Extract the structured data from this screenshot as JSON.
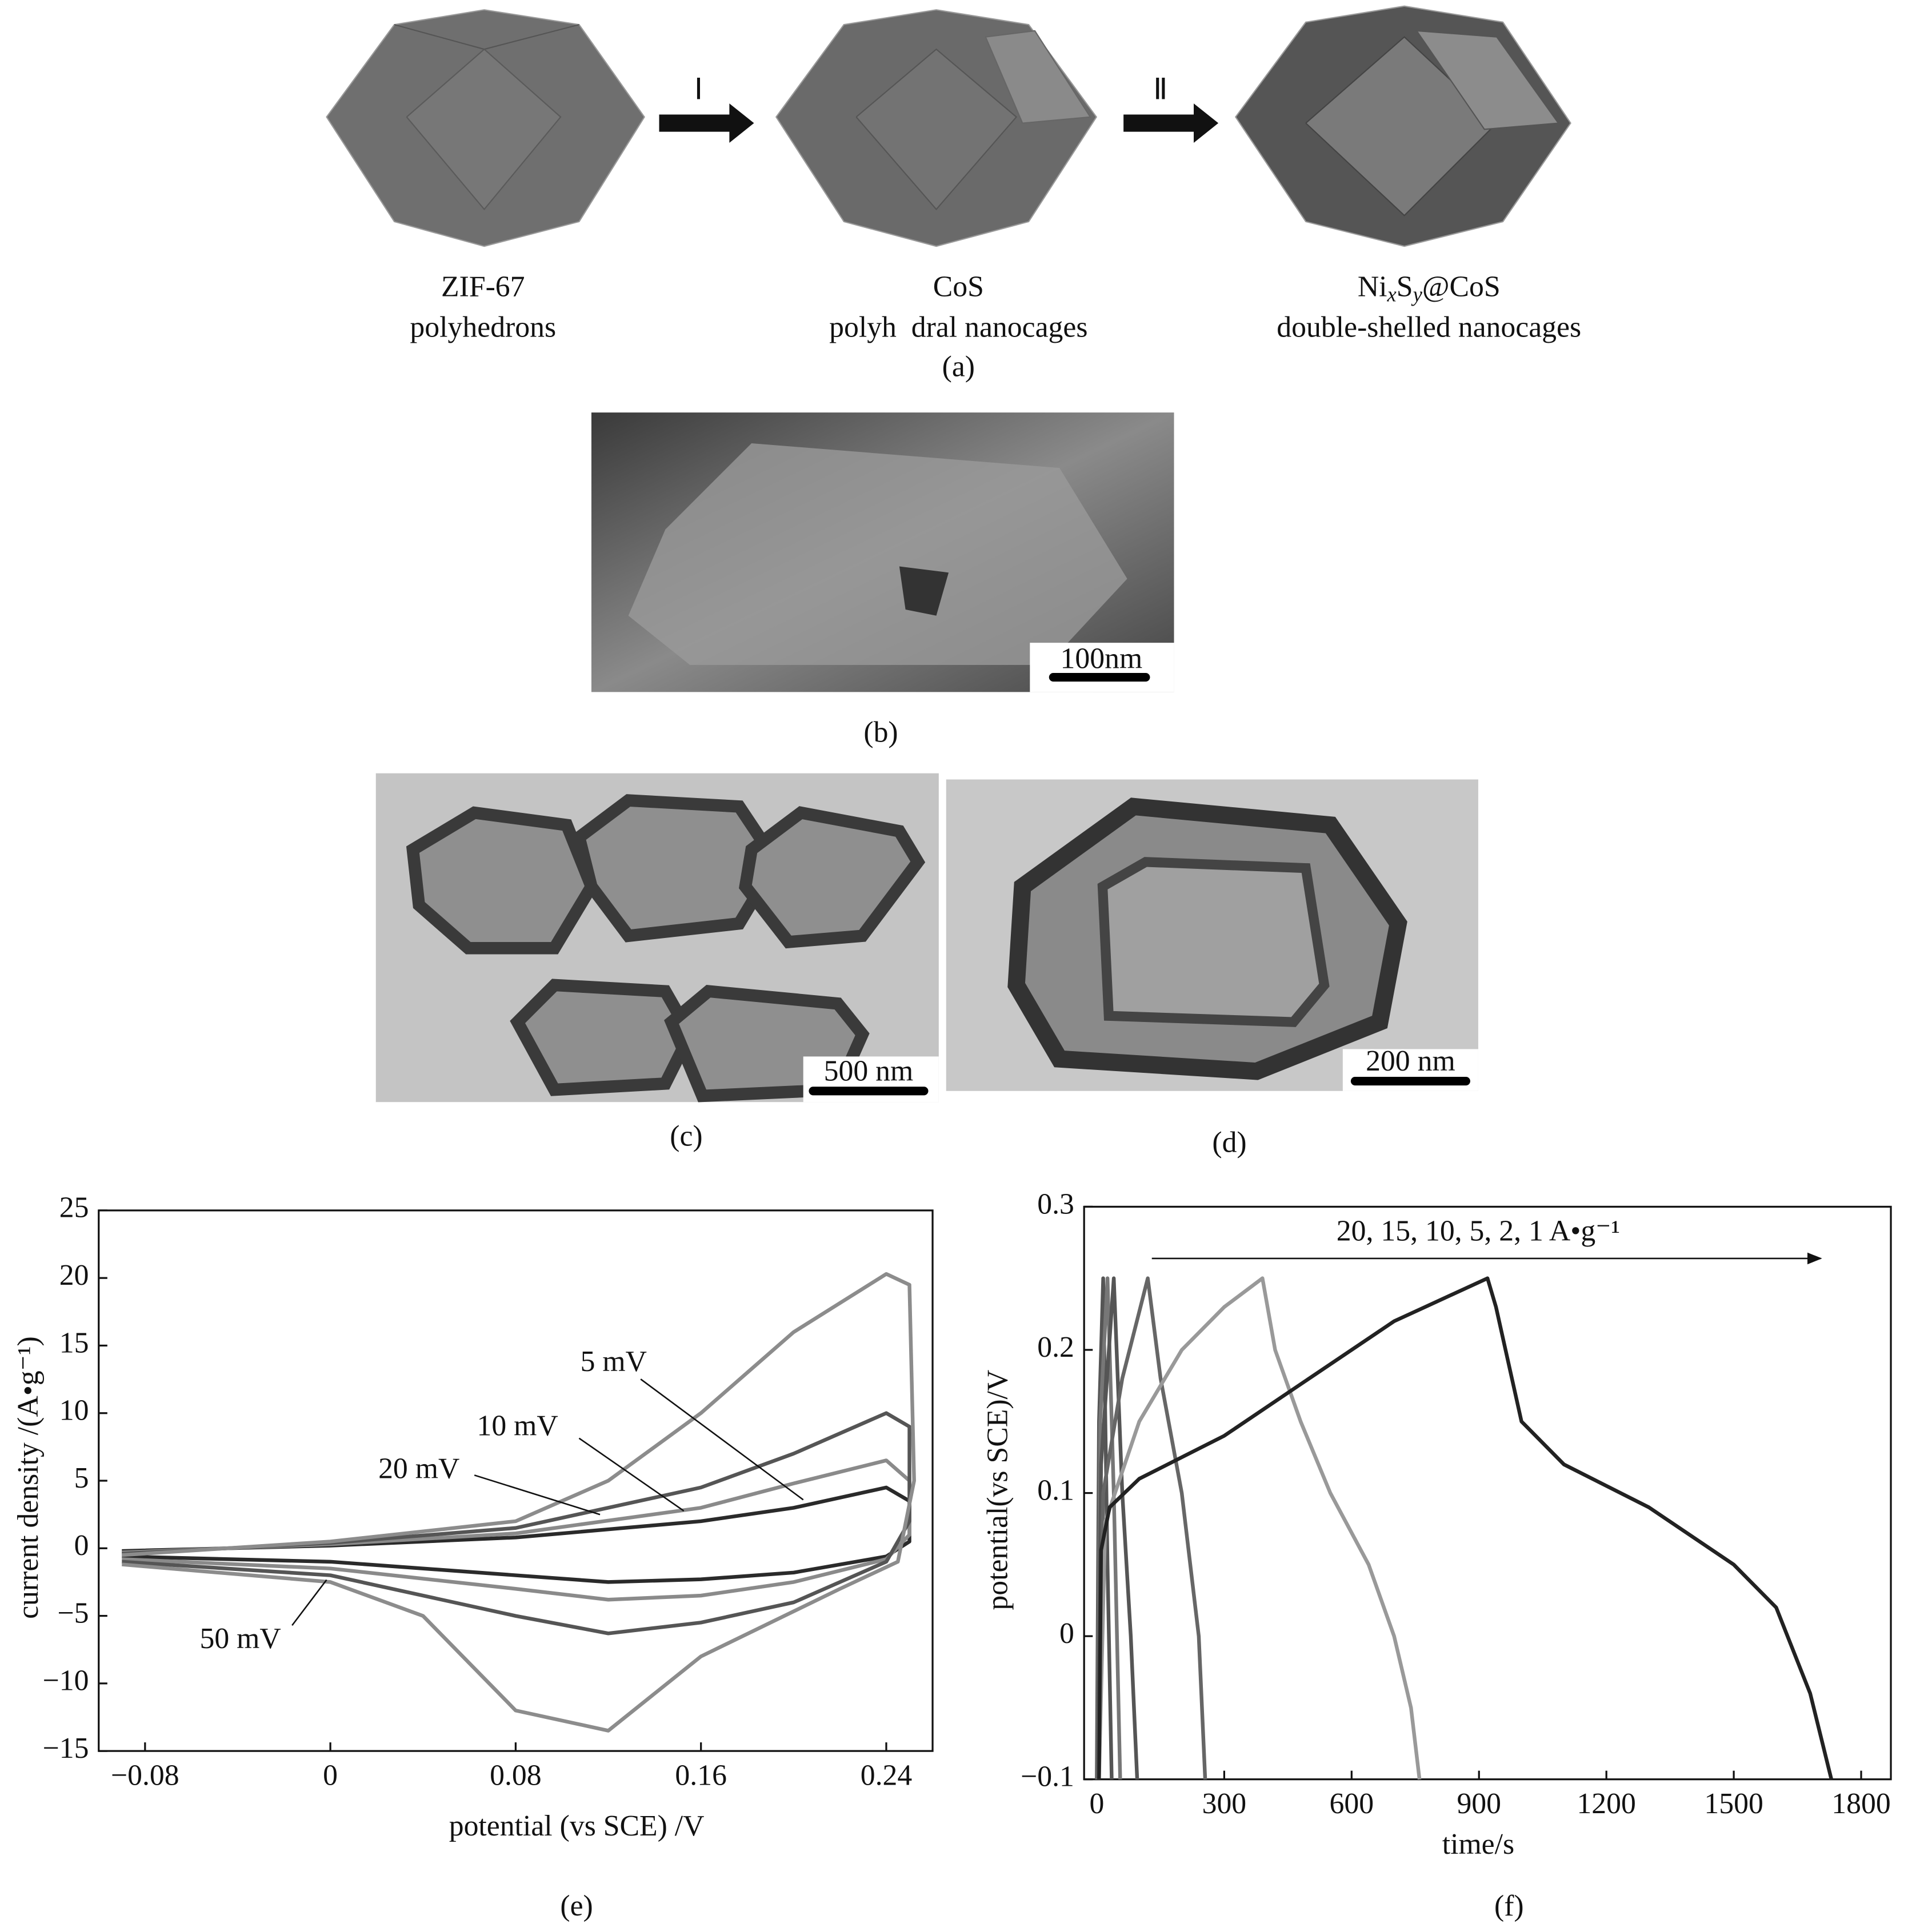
{
  "figure": {
    "schematic": {
      "steps": [
        "Ⅰ",
        "Ⅱ"
      ],
      "stages": [
        {
          "name": "ZIF-67",
          "desc": "polyhedrons"
        },
        {
          "name": "CoS",
          "desc": "polyh  dral nanocages"
        },
        {
          "name": [
            "Ni",
            "x",
            "S",
            "y",
            "@CoS"
          ],
          "desc": "double-shelled nanocages"
        }
      ]
    },
    "labels": [
      "(a)",
      "(b)",
      "(c)",
      "(d)",
      "(e)",
      "(f)"
    ],
    "scale_bars": [
      "100nm",
      "500 nm",
      "200 nm"
    ]
  },
  "chart_data": [
    {
      "type": "line",
      "x_label": "potential (vs SCE) /V",
      "y_label": "current density /(A•g⁻¹)",
      "xlim": [
        -0.1,
        0.26
      ],
      "xticks": [
        {
          "value": -0.08,
          "label": "−0.08"
        },
        0,
        0.08,
        0.16,
        0.24
      ],
      "ylim": [
        -15,
        25
      ],
      "yticks": [
        {
          "value": -15,
          "label": "−15"
        },
        {
          "value": -10,
          "label": "−10"
        },
        {
          "value": -5,
          "label": "−5"
        },
        0,
        5,
        10,
        15,
        20,
        25
      ],
      "series": [
        {
          "name": "5 mV",
          "color": "#2a2a2a",
          "x": [
            -0.09,
            0,
            0.08,
            0.16,
            0.2,
            0.24,
            0.25,
            0.25,
            0.24,
            0.2,
            0.16,
            0.12,
            0.08,
            0,
            -0.09
          ],
          "values": [
            -0.2,
            0.2,
            0.8,
            2,
            3,
            4.5,
            3.5,
            0.5,
            -0.6,
            -1.8,
            -2.3,
            -2.5,
            -2,
            -1,
            -0.6
          ]
        },
        {
          "name": "10 mV",
          "color": "#8a8a8a",
          "x": [
            -0.09,
            0,
            0.08,
            0.16,
            0.2,
            0.24,
            0.25,
            0.25,
            0.24,
            0.2,
            0.16,
            0.12,
            0.08,
            0,
            -0.09
          ],
          "values": [
            -0.3,
            0.3,
            1.1,
            3,
            4.8,
            6.5,
            5,
            1,
            -0.8,
            -2.5,
            -3.5,
            -3.8,
            -3,
            -1.5,
            -0.8
          ]
        },
        {
          "name": "20 mV",
          "color": "#555555",
          "x": [
            -0.09,
            0,
            0.08,
            0.16,
            0.2,
            0.24,
            0.25,
            0.25,
            0.24,
            0.2,
            0.16,
            0.12,
            0.08,
            0,
            -0.09
          ],
          "values": [
            -0.4,
            0.4,
            1.5,
            4.5,
            7,
            10,
            9,
            2,
            -1,
            -4,
            -5.5,
            -6.3,
            -5,
            -2,
            -1
          ]
        },
        {
          "name": "50 mV",
          "color": "#8c8c8c",
          "x": [
            -0.09,
            0,
            0.08,
            0.12,
            0.16,
            0.2,
            0.24,
            0.25,
            0.252,
            0.245,
            0.22,
            0.16,
            0.12,
            0.08,
            0.04,
            0,
            -0.09
          ],
          "values": [
            -0.5,
            0.5,
            2,
            5,
            10,
            16,
            20.3,
            19.5,
            5,
            -1,
            -3,
            -8,
            -13.5,
            -12,
            -5,
            -2.5,
            -1.2
          ]
        }
      ]
    },
    {
      "type": "line",
      "x_label": "time/s",
      "y_label": "potential(vs SCE)/V",
      "annotation": "20, 15, 10, 5, 2, 1 A•g⁻¹",
      "xlim": [
        -30,
        1870
      ],
      "xticks": [
        0,
        300,
        600,
        900,
        1200,
        1500,
        1800
      ],
      "ylim": [
        -0.1,
        0.3
      ],
      "yticks": [
        {
          "value": -0.1,
          "label": "−0.1"
        },
        0,
        0.1,
        0.2,
        0.3
      ],
      "series": [
        {
          "color": "#555555",
          "x": [
            0,
            5,
            15,
            25,
            35
          ],
          "values": [
            -0.1,
            0.15,
            0.25,
            0.05,
            -0.1
          ]
        },
        {
          "color": "#777777",
          "x": [
            1,
            8,
            25,
            40,
            55
          ],
          "values": [
            -0.1,
            0.15,
            0.25,
            0.1,
            -0.1
          ]
        },
        {
          "color": "#555555",
          "x": [
            2,
            10,
            40,
            60,
            80,
            95
          ],
          "values": [
            -0.1,
            0.12,
            0.25,
            0.1,
            0,
            -0.1
          ]
        },
        {
          "color": "#666666",
          "x": [
            3,
            15,
            60,
            120,
            150,
            200,
            240,
            255
          ],
          "values": [
            -0.1,
            0.1,
            0.18,
            0.25,
            0.18,
            0.1,
            0,
            -0.1
          ]
        },
        {
          "color": "#999999",
          "x": [
            5,
            20,
            100,
            200,
            300,
            390,
            420,
            480,
            550,
            640,
            700,
            740,
            760
          ],
          "values": [
            -0.1,
            0.08,
            0.15,
            0.2,
            0.23,
            0.25,
            0.2,
            0.15,
            0.1,
            0.05,
            0,
            -0.05,
            -0.1
          ]
        },
        {
          "color": "#222222",
          "x": [
            5,
            10,
            30,
            100,
            300,
            500,
            700,
            920,
            940,
            1000,
            1100,
            1300,
            1500,
            1600,
            1680,
            1730
          ],
          "values": [
            -0.1,
            0.06,
            0.09,
            0.11,
            0.14,
            0.18,
            0.22,
            0.25,
            0.23,
            0.15,
            0.12,
            0.09,
            0.05,
            0.02,
            -0.04,
            -0.1
          ]
        }
      ]
    }
  ]
}
